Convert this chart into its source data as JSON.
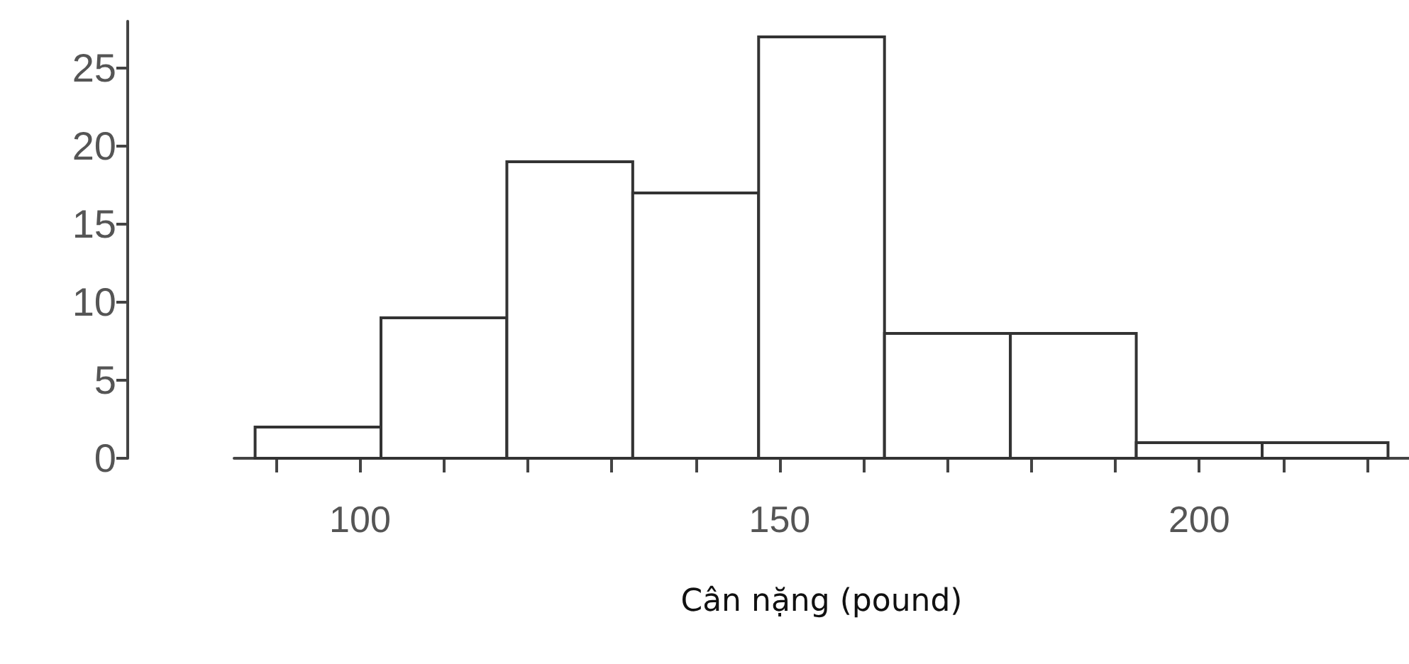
{
  "chart_data": {
    "type": "histogram",
    "xlabel": "Cân nặng (pound)",
    "bins": [
      87.5,
      102.5,
      117.5,
      132.5,
      147.5,
      162.5,
      177.5,
      192.5,
      207.5,
      222.5
    ],
    "values": [
      2,
      9,
      19,
      17,
      27,
      8,
      8,
      1,
      1
    ],
    "color": "#ffffff",
    "xlim": [
      85,
      225
    ],
    "xticks": [
      {
        "value": 90,
        "label": null
      },
      100,
      {
        "value": 110,
        "label": null
      },
      {
        "value": 120,
        "label": null
      },
      {
        "value": 130,
        "label": null
      },
      {
        "value": 140,
        "label": null
      },
      150,
      {
        "value": 160,
        "label": null
      },
      {
        "value": 170,
        "label": null
      },
      {
        "value": 180,
        "label": null
      },
      {
        "value": 190,
        "label": null
      },
      200,
      {
        "value": 210,
        "label": null
      },
      {
        "value": 220,
        "label": null
      }
    ],
    "ylim": [
      0,
      28
    ],
    "yticks": [
      0,
      5,
      10,
      15,
      20,
      25
    ],
    "grid": false
  }
}
